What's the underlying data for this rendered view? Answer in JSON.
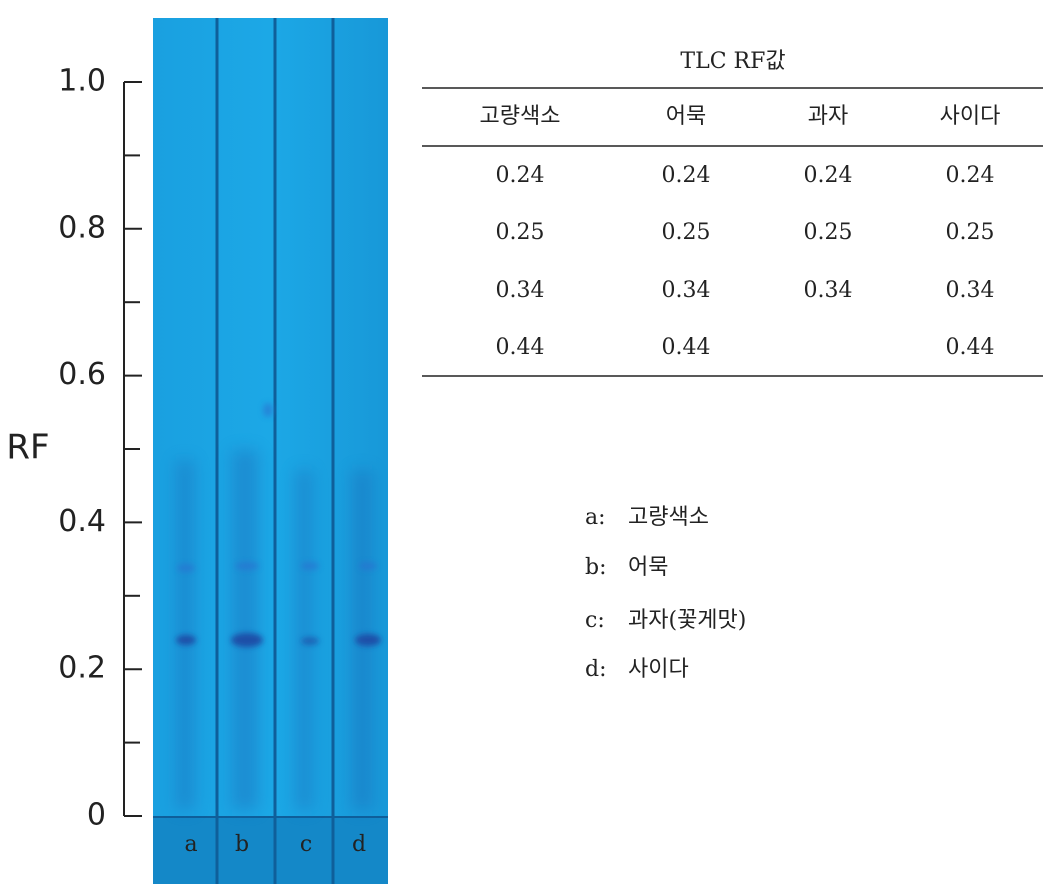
{
  "axis": {
    "label": "RF",
    "ylim": [
      0,
      1
    ],
    "yticks": [
      0,
      0.2,
      0.4,
      0.6,
      0.8,
      {
        "value": 1,
        "label": "1.0"
      }
    ],
    "minor_ticks": [
      0.1,
      0.3,
      0.5,
      0.7,
      0.9
    ]
  },
  "plate": {
    "lanes": [
      "a",
      "b",
      "c",
      "d"
    ]
  },
  "table": {
    "title": "TLC RF값",
    "header": [
      "고량색소",
      "어묵",
      "과자",
      "사이다"
    ],
    "rows": [
      [
        0.24,
        0.24,
        0.24,
        0.24
      ],
      [
        0.25,
        0.25,
        0.25,
        0.25
      ],
      [
        0.34,
        0.34,
        0.34,
        0.34
      ],
      [
        0.44,
        0.44,
        null,
        0.44
      ]
    ]
  },
  "legend": [
    {
      "key": "a:",
      "label": "고량색소"
    },
    {
      "key": "b:",
      "label": "어묵"
    },
    {
      "key": "c:",
      "label": "과자(꽃게맛)"
    },
    {
      "key": "d:",
      "label": "사이다"
    }
  ]
}
